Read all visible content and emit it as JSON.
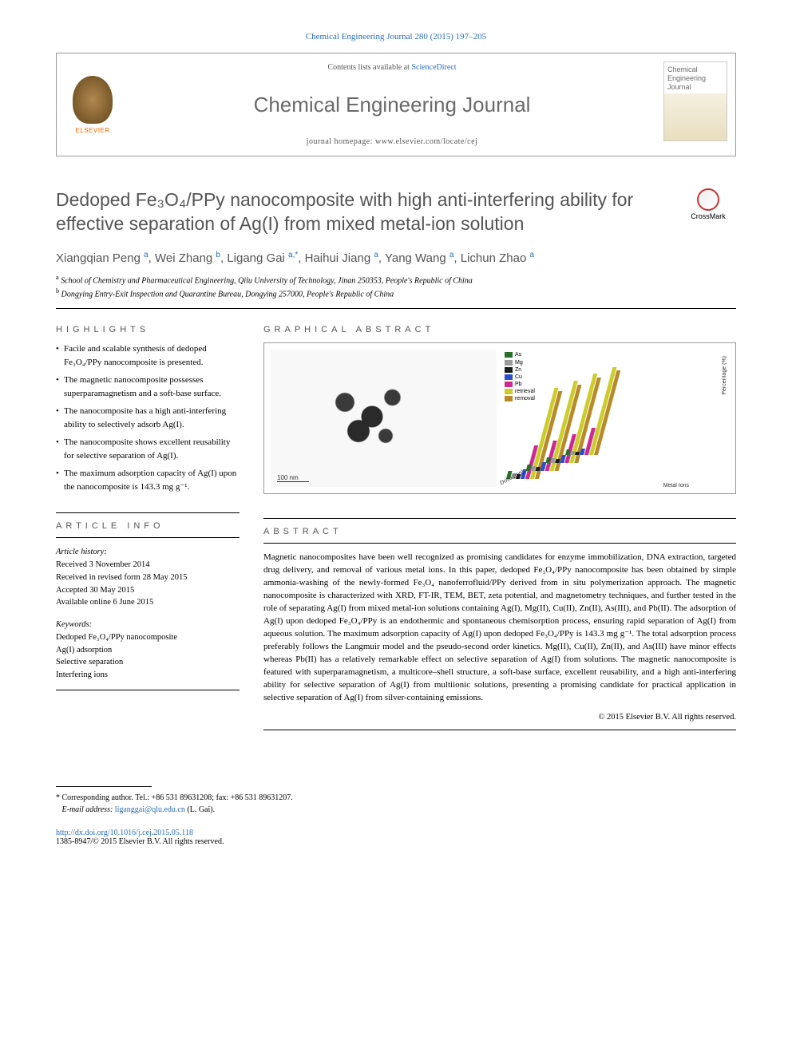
{
  "citation": "Chemical Engineering Journal 280 (2015) 197–205",
  "header": {
    "contents_prefix": "Contents lists available at ",
    "contents_link": "ScienceDirect",
    "journal_name": "Chemical Engineering Journal",
    "homepage_prefix": "journal homepage: ",
    "homepage_url": "www.elsevier.com/locate/cej",
    "publisher": "ELSEVIER",
    "cover_text": "Chemical Engineering Journal"
  },
  "crossmark_label": "CrossMark",
  "title": "Dedoped Fe₃O₄/PPy nanocomposite with high anti-interfering ability for effective separation of Ag(I) from mixed metal-ion solution",
  "authors_html": "Xiangqian Peng <sup>a</sup>, Wei Zhang <sup>b</sup>, Ligang Gai <sup>a,*</sup>, Haihui Jiang <sup>a</sup>, Yang Wang <sup>a</sup>, Lichun Zhao <sup>a</sup>",
  "affiliations": [
    {
      "sup": "a",
      "text": "School of Chemistry and Pharmaceutical Engineering, Qilu University of Technology, Jinan 250353, People's Republic of China"
    },
    {
      "sup": "b",
      "text": "Dongying Entry-Exit Inspection and Quarantine Bureau, Dongying 257000, People's Republic of China"
    }
  ],
  "labels": {
    "highlights": "HIGHLIGHTS",
    "graphical": "GRAPHICAL ABSTRACT",
    "article_info": "ARTICLE INFO",
    "abstract": "ABSTRACT"
  },
  "highlights": [
    "Facile and scalable synthesis of dedoped Fe₃O₄/PPy nanocomposite is presented.",
    "The magnetic nanocomposite possesses superparamagnetism and a soft-base surface.",
    "The nanocomposite has a high anti-interfering ability to selectively adsorb Ag(I).",
    "The nanocomposite shows excellent reusability for selective separation of Ag(I).",
    "The maximum adsorption capacity of Ag(I) upon the nanocomposite is 143.3 mg g⁻¹."
  ],
  "article_info": {
    "history_head": "Article history:",
    "received": "Received 3 November 2014",
    "revised": "Received in revised form 28 May 2015",
    "accepted": "Accepted 30 May 2015",
    "online": "Available online 6 June 2015",
    "keywords_head": "Keywords:",
    "keywords": [
      "Dedoped Fe₃O₄/PPy nanocomposite",
      "Ag(I) adsorption",
      "Selective separation",
      "Interfering ions"
    ]
  },
  "graphical_abstract": {
    "scale_label": "100 nm",
    "legend": [
      {
        "label": "As",
        "color": "#2a6e2a"
      },
      {
        "label": "Mg",
        "color": "#9a9a9a"
      },
      {
        "label": "Zn",
        "color": "#1a1a1a"
      },
      {
        "label": "Cu",
        "color": "#2a4ecc"
      },
      {
        "label": "Pb",
        "color": "#cc2a8e"
      },
      {
        "label": "retrieval",
        "color": "#cccc2a"
      },
      {
        "label": "removal",
        "color": "#b88a2a"
      }
    ],
    "y_axis_label": "Percentage (%)",
    "y_ticks": [
      "0",
      "20",
      "40",
      "60",
      "80",
      "100"
    ],
    "x_axis_left": "Dose (mg)",
    "x_axis_right": "Metal Ions",
    "x_categories": [
      "As",
      "Mg",
      "Zn",
      "Cu",
      "Pb",
      "As"
    ],
    "bar_colors": [
      "#2a6e2a",
      "#9a9a9a",
      "#1a1a1a",
      "#2a4ecc",
      "#cc2a8e",
      "#cccc2a",
      "#b88a2a"
    ],
    "series_heights_pct": [
      [
        8,
        6,
        5,
        10,
        35,
        95,
        92
      ],
      [
        7,
        5,
        4,
        9,
        32,
        94,
        90
      ],
      [
        6,
        5,
        4,
        8,
        30,
        93,
        89
      ],
      [
        6,
        4,
        3,
        7,
        28,
        92,
        88
      ]
    ]
  },
  "abstract": "Magnetic nanocomposites have been well recognized as promising candidates for enzyme immobilization, DNA extraction, targeted drug delivery, and removal of various metal ions. In this paper, dedoped Fe₃O₄/PPy nanocomposite has been obtained by simple ammonia-washing of the newly-formed Fe₃O₄ nanoferrofluid/PPy derived from in situ polymerization approach. The magnetic nanocomposite is characterized with XRD, FT-IR, TEM, BET, zeta potential, and magnetometry techniques, and further tested in the role of separating Ag(I) from mixed metal-ion solutions containing Ag(I), Mg(II), Cu(II), Zn(II), As(III), and Pb(II). The adsorption of Ag(I) upon dedoped Fe₃O₄/PPy is an endothermic and spontaneous chemisorption process, ensuring rapid separation of Ag(I) from aqueous solution. The maximum adsorption capacity of Ag(I) upon dedoped Fe₃O₄/PPy is 143.3 mg g⁻¹. The total adsorption process preferably follows the Langmuir model and the pseudo-second order kinetics. Mg(II), Cu(II), Zn(II), and As(III) have minor effects whereas Pb(II) has a relatively remarkable effect on selective separation of Ag(I) from solutions. The magnetic nanocomposite is featured with superparamagnetism, a multicore–shell structure, a soft-base surface, excellent reusability, and a high anti-interfering ability for selective separation of Ag(I) from multiionic solutions, presenting a promising candidate for practical application in selective separation of Ag(I) from silver-containing emissions.",
  "copyright": "© 2015 Elsevier B.V. All rights reserved.",
  "corresponding": {
    "marker": "*",
    "text": "Corresponding author. Tel.: +86 531 89631208; fax: +86 531 89631207.",
    "email_label": "E-mail address:",
    "email": "liganggai@qlu.edu.cn",
    "email_suffix": "(L. Gai)."
  },
  "doi": {
    "url": "http://dx.doi.org/10.1016/j.cej.2015.05.118",
    "issn_line": "1385-8947/© 2015 Elsevier B.V. All rights reserved."
  }
}
